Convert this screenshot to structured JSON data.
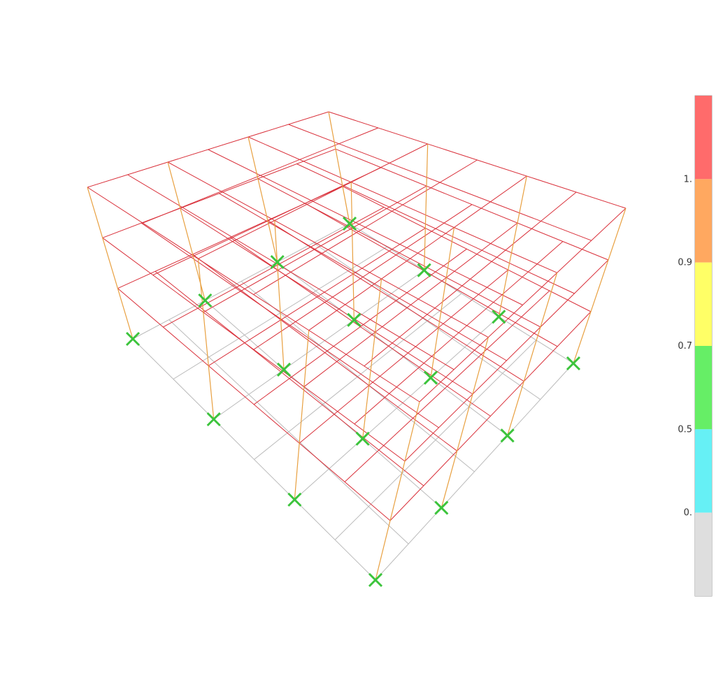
{
  "legend": {
    "labels": [
      "1.",
      "0.9",
      "0.7",
      "0.5",
      "0."
    ],
    "bands": [
      "#ff6b6b",
      "#ffa860",
      "#ffff66",
      "#66ee66",
      "#66f0f5",
      "#dedede"
    ]
  }
}
